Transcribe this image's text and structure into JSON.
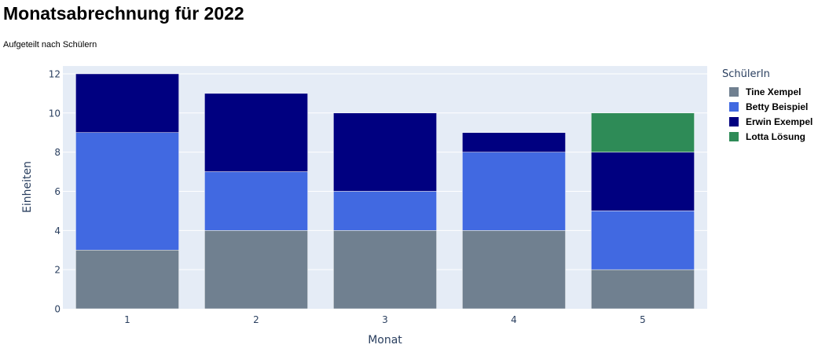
{
  "page": {
    "title": "Monatsabrechnung für 2022",
    "subtitle": "Aufgeteilt nach Schülern"
  },
  "chart_data": {
    "type": "bar",
    "stacked": true,
    "categories": [
      "1",
      "2",
      "3",
      "4",
      "5"
    ],
    "series": [
      {
        "name": "Tine Xempel",
        "color": "#708090",
        "values": [
          3,
          4,
          4,
          4,
          2
        ]
      },
      {
        "name": "Betty Beispiel",
        "color": "#4169e1",
        "values": [
          6,
          3,
          2,
          4,
          3
        ]
      },
      {
        "name": "Erwin Exempel",
        "color": "#000080",
        "values": [
          3,
          4,
          4,
          1,
          3
        ]
      },
      {
        "name": "Lotta Lösung",
        "color": "#2e8b57",
        "values": [
          0,
          0,
          0,
          0,
          2
        ]
      }
    ],
    "xlabel": "Monat",
    "ylabel": "Einheiten",
    "ylim": [
      0,
      12.4
    ],
    "yticks": [
      0,
      2,
      4,
      6,
      8,
      10,
      12
    ],
    "grid": true,
    "plot_background": "#e5ecf6",
    "legend_title": "SchülerIn",
    "legend_position": "right"
  }
}
